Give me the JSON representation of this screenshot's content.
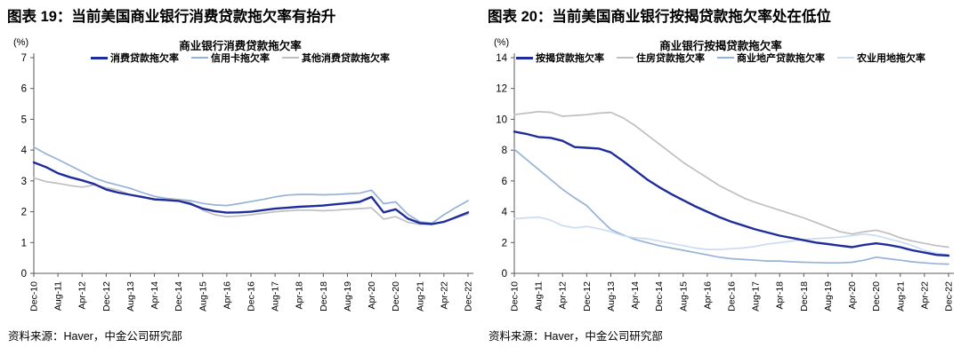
{
  "panels": [
    {
      "header": "图表 19：当前美国商业银行消费贷款拖欠率有抬升",
      "source": "资料来源：Haver，中金公司研究部"
    },
    {
      "header": "图表 20：当前美国商业银行按揭贷款拖欠率处在低位",
      "source": "资料来源：Haver，中金公司研究部"
    }
  ],
  "chart_data": [
    {
      "type": "line",
      "title": "商业银行消费贷款拖欠率",
      "unit_label": "(%)",
      "ylim": [
        0,
        7
      ],
      "ytick_step": 1,
      "grid": false,
      "legend_position": "top",
      "axis_color": "#595959",
      "x_tick_labels": [
        "Dec-10",
        "Aug-11",
        "Apr-12",
        "Dec-12",
        "Aug-13",
        "Apr-14",
        "Dec-14",
        "Aug-15",
        "Apr-16",
        "Dec-16",
        "Aug-17",
        "Apr-18",
        "Dec-18",
        "Aug-19",
        "Apr-20",
        "Dec-20",
        "Aug-21",
        "Apr-22",
        "Dec-22"
      ],
      "x_points_per_tick": 2,
      "series": [
        {
          "name": "消费贷款拖欠率",
          "color": "#1F2C9C",
          "width": 2.4,
          "values": [
            3.6,
            3.45,
            3.25,
            3.12,
            3.02,
            2.9,
            2.72,
            2.62,
            2.55,
            2.48,
            2.4,
            2.38,
            2.35,
            2.25,
            2.1,
            2.02,
            1.97,
            1.98,
            2.0,
            2.05,
            2.1,
            2.13,
            2.16,
            2.18,
            2.2,
            2.24,
            2.28,
            2.32,
            2.48,
            1.98,
            2.08,
            1.78,
            1.63,
            1.6,
            1.67,
            1.82,
            1.98
          ]
        },
        {
          "name": "信用卡拖欠率",
          "color": "#95B3D7",
          "width": 1.7,
          "values": [
            4.1,
            3.88,
            3.7,
            3.5,
            3.3,
            3.1,
            2.96,
            2.86,
            2.76,
            2.62,
            2.5,
            2.43,
            2.4,
            2.36,
            2.27,
            2.22,
            2.2,
            2.26,
            2.33,
            2.4,
            2.48,
            2.54,
            2.56,
            2.56,
            2.55,
            2.56,
            2.58,
            2.6,
            2.7,
            2.26,
            2.32,
            1.92,
            1.67,
            1.63,
            1.9,
            2.14,
            2.36
          ]
        },
        {
          "name": "其他消费贷款拖欠率",
          "color": "#BFBFBF",
          "width": 1.7,
          "values": [
            3.1,
            2.98,
            2.92,
            2.85,
            2.8,
            2.87,
            2.78,
            2.7,
            2.55,
            2.46,
            2.42,
            2.4,
            2.4,
            2.3,
            2.05,
            1.9,
            1.84,
            1.86,
            1.9,
            1.95,
            2.0,
            2.03,
            2.05,
            2.05,
            2.03,
            2.05,
            2.08,
            2.1,
            2.13,
            1.76,
            1.84,
            1.66,
            1.59,
            1.61,
            1.69,
            1.8,
            1.92
          ]
        }
      ]
    },
    {
      "type": "line",
      "title": "商业银行按揭贷款拖欠率",
      "unit_label": "(%)",
      "ylim": [
        0,
        14
      ],
      "ytick_step": 2,
      "grid": false,
      "legend_position": "top",
      "axis_color": "#595959",
      "x_tick_labels": [
        "Dec-10",
        "Aug-11",
        "Apr-12",
        "Dec-12",
        "Aug-13",
        "Apr-14",
        "Dec-14",
        "Aug-15",
        "Apr-16",
        "Dec-16",
        "Aug-17",
        "Apr-18",
        "Dec-18",
        "Aug-19",
        "Apr-20",
        "Dec-20",
        "Aug-21",
        "Apr-22",
        "Dec-22"
      ],
      "x_points_per_tick": 2,
      "series": [
        {
          "name": "按揭贷款拖欠率",
          "color": "#1F2C9C",
          "width": 2.4,
          "values": [
            9.2,
            9.05,
            8.85,
            8.8,
            8.6,
            8.2,
            8.15,
            8.1,
            7.85,
            7.3,
            6.7,
            6.1,
            5.6,
            5.15,
            4.75,
            4.35,
            4.0,
            3.65,
            3.35,
            3.1,
            2.85,
            2.65,
            2.45,
            2.3,
            2.15,
            2.0,
            1.9,
            1.8,
            1.7,
            1.85,
            1.95,
            1.85,
            1.7,
            1.5,
            1.35,
            1.2,
            1.15
          ]
        },
        {
          "name": "住房贷款拖欠率",
          "color": "#BFBFBF",
          "width": 1.7,
          "values": [
            10.3,
            10.4,
            10.5,
            10.45,
            10.2,
            10.25,
            10.3,
            10.4,
            10.45,
            10.1,
            9.6,
            9.0,
            8.4,
            7.8,
            7.2,
            6.7,
            6.2,
            5.7,
            5.3,
            4.9,
            4.6,
            4.35,
            4.1,
            3.85,
            3.6,
            3.3,
            3.0,
            2.7,
            2.55,
            2.7,
            2.8,
            2.6,
            2.3,
            2.1,
            1.95,
            1.8,
            1.7
          ]
        },
        {
          "name": "商业地产贷款拖欠率",
          "color": "#95B3D7",
          "width": 1.7,
          "values": [
            8.05,
            7.4,
            6.75,
            6.1,
            5.45,
            4.9,
            4.4,
            3.6,
            2.85,
            2.5,
            2.2,
            2.0,
            1.8,
            1.65,
            1.5,
            1.35,
            1.2,
            1.05,
            0.95,
            0.9,
            0.85,
            0.8,
            0.8,
            0.75,
            0.72,
            0.7,
            0.68,
            0.68,
            0.72,
            0.85,
            1.05,
            0.95,
            0.85,
            0.75,
            0.68,
            0.62,
            0.6
          ]
        },
        {
          "name": "农业用地拖欠率",
          "color": "#CBDCF2",
          "width": 1.7,
          "values": [
            3.55,
            3.6,
            3.65,
            3.45,
            3.1,
            2.95,
            3.05,
            2.9,
            2.7,
            2.45,
            2.3,
            2.25,
            2.1,
            1.95,
            1.8,
            1.65,
            1.55,
            1.55,
            1.6,
            1.65,
            1.75,
            1.9,
            2.0,
            2.1,
            2.2,
            2.25,
            2.3,
            2.35,
            2.45,
            2.55,
            2.45,
            2.25,
            2.05,
            1.8,
            1.5,
            1.3,
            1.2
          ]
        }
      ]
    }
  ]
}
